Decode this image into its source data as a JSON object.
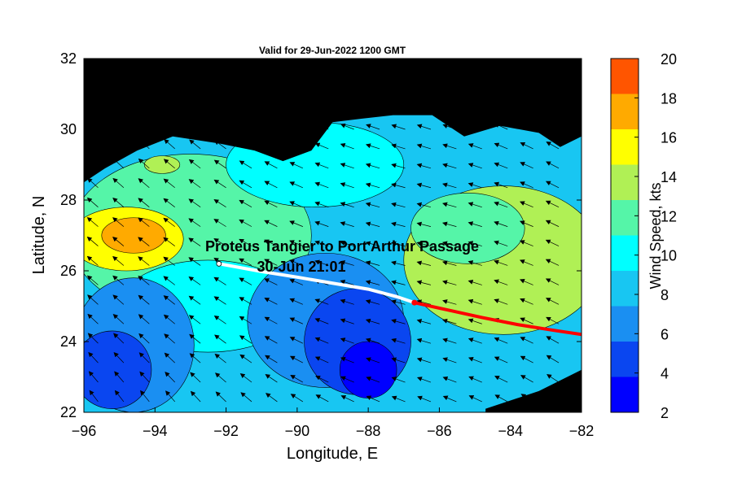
{
  "chart_data": {
    "type": "heatmap",
    "title": "Valid for 29-Jun-2022 1200 GMT",
    "xlabel": "Longitude, E",
    "ylabel": "Latitude, N",
    "xlim": [
      -96,
      -82
    ],
    "ylim": [
      22,
      32
    ],
    "x_ticks": [
      -96,
      -94,
      -92,
      -90,
      -88,
      -86,
      -84,
      -82
    ],
    "x_tick_labels": [
      "−96",
      "−94",
      "−92",
      "−90",
      "−88",
      "−86",
      "−84",
      "−82"
    ],
    "y_ticks": [
      22,
      24,
      26,
      28,
      30,
      32
    ],
    "y_tick_labels": [
      "22",
      "24",
      "26",
      "28",
      "30",
      "32"
    ],
    "colorbar": {
      "label": "Wind Speed, kts",
      "range": [
        2,
        20
      ],
      "ticks": [
        2,
        4,
        6,
        8,
        10,
        12,
        14,
        16,
        18,
        20
      ],
      "tick_labels": [
        "2",
        "4",
        "6",
        "8",
        "10",
        "12",
        "14",
        "16",
        "18",
        "20"
      ],
      "colors": [
        "#0000ff",
        "#0a46f0",
        "#1a8ff2",
        "#18c6f2",
        "#00ffff",
        "#55f5a8",
        "#b0f055",
        "#ffff00",
        "#ffaa00",
        "#ff5500"
      ]
    },
    "land_color": "#000000",
    "annotation": {
      "line1": "Proteus Tangier to Port Arthur Passage",
      "line2": "30-Jun 21:01",
      "anchor": [
        -92.2,
        26.2
      ]
    },
    "track_completed": {
      "color": "#ffffff",
      "points": [
        [
          -92.2,
          26.2
        ],
        [
          -91.0,
          25.98
        ],
        [
          -90.0,
          25.82
        ],
        [
          -89.0,
          25.65
        ],
        [
          -88.0,
          25.48
        ],
        [
          -87.2,
          25.27
        ],
        [
          -86.7,
          25.1
        ]
      ]
    },
    "track_remaining": {
      "color": "#ff0000",
      "points": [
        [
          -86.7,
          25.1
        ],
        [
          -85.8,
          24.9
        ],
        [
          -84.8,
          24.68
        ],
        [
          -83.8,
          24.48
        ],
        [
          -82.8,
          24.32
        ],
        [
          -82.0,
          24.2
        ]
      ]
    },
    "wind_speed_regions_kts": [
      {
        "name": "nw-gulf-max",
        "center": [
          -94.5,
          26.9
        ],
        "speed": 17
      },
      {
        "name": "eastern-gulf",
        "center": [
          -84.5,
          26.2
        ],
        "speed": 13
      },
      {
        "name": "central-gulf-min",
        "center": [
          -88.3,
          24.2
        ],
        "speed": 5
      },
      {
        "name": "sw-gulf",
        "center": [
          -95.2,
          23.2
        ],
        "speed": 4
      }
    ]
  }
}
